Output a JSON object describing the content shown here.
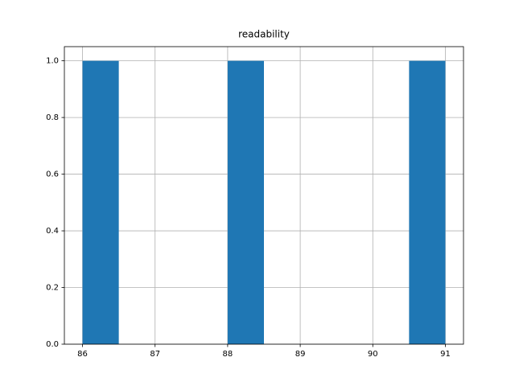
{
  "chart_data": {
    "type": "histogram",
    "title": "readability",
    "bins": [
      86,
      86.5,
      87,
      87.5,
      88,
      88.5,
      89,
      89.5,
      90,
      90.5,
      91
    ],
    "values": [
      1,
      0,
      0,
      0,
      1,
      0,
      0,
      0,
      0,
      1
    ],
    "color": "#1f77b4",
    "xlim": [
      85.75,
      91.25
    ],
    "xticks": [
      86,
      87,
      88,
      89,
      90,
      91
    ],
    "ylim": [
      0,
      1.05
    ],
    "yticks": [
      {
        "value": 0,
        "label": "0.0"
      },
      {
        "value": 0.2,
        "label": "0.2"
      },
      {
        "value": 0.4,
        "label": "0.4"
      },
      {
        "value": 0.6,
        "label": "0.6"
      },
      {
        "value": 0.8,
        "label": "0.8"
      },
      {
        "value": 1,
        "label": "1.0"
      }
    ],
    "grid": true
  }
}
